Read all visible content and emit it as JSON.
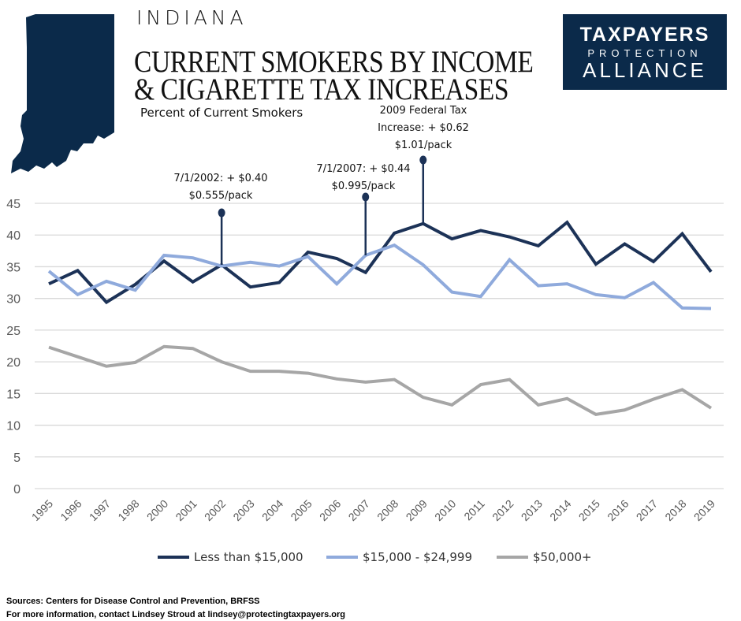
{
  "header": {
    "kicker": "INDIANA",
    "title_line1": "CURRENT SMOKERS BY INCOME",
    "title_line2": "& CIGARETTE TAX INCREASES",
    "subtitle": "Percent of Current Smokers"
  },
  "logo": {
    "line1": "TAXPAYERS",
    "line2": "PROTECTION",
    "line3": "ALLIANCE",
    "color": "#0b2a4a"
  },
  "annotations": [
    {
      "year": "2002",
      "lines": [
        "7/1/2002: + $0.40",
        "$0.555/pack"
      ]
    },
    {
      "year": "2007",
      "lines": [
        "7/1/2007: + $0.44",
        "$0.995/pack"
      ]
    },
    {
      "year": "2009",
      "lines": [
        "2009 Federal Tax",
        "Increase: + $0.62",
        "$1.01/pack"
      ]
    }
  ],
  "chart_data": {
    "type": "line",
    "title": "",
    "xlabel": "",
    "ylabel": "",
    "ylim": [
      0,
      45
    ],
    "yticks": [
      0,
      5,
      10,
      15,
      20,
      25,
      30,
      35,
      40,
      45
    ],
    "grid": true,
    "legend_placement": "bottom",
    "categories": [
      "1995",
      "1996",
      "1997",
      "1998",
      "2000",
      "2001",
      "2002",
      "2003",
      "2004",
      "2005",
      "2006",
      "2007",
      "2008",
      "2009",
      "2010",
      "2011",
      "2012",
      "2013",
      "2014",
      "2015",
      "2016",
      "2017",
      "2018",
      "2019"
    ],
    "series": [
      {
        "name": "Less than $15,000",
        "color": "#1c3257",
        "values": [
          32.3,
          34.4,
          29.4,
          32.2,
          35.9,
          32.6,
          35.3,
          31.8,
          32.5,
          37.3,
          36.3,
          34.1,
          40.3,
          41.8,
          39.4,
          40.7,
          39.7,
          38.3,
          42.0,
          35.4,
          38.6,
          35.8,
          40.2,
          34.2
        ]
      },
      {
        "name": "$15,000 - $24,999",
        "color": "#8faadc",
        "values": [
          34.3,
          30.6,
          32.7,
          31.3,
          36.8,
          36.4,
          35.1,
          35.7,
          35.1,
          36.6,
          32.3,
          36.8,
          38.4,
          35.3,
          31.0,
          30.3,
          36.1,
          32.0,
          32.3,
          30.6,
          30.1,
          32.5,
          28.5,
          28.4
        ]
      },
      {
        "name": "$50,000+",
        "color": "#a6a6a6",
        "values": [
          22.3,
          20.8,
          19.3,
          19.9,
          22.4,
          22.1,
          20.0,
          18.5,
          18.5,
          18.2,
          17.3,
          16.8,
          17.2,
          14.4,
          13.2,
          16.4,
          17.2,
          13.2,
          14.2,
          11.7,
          12.4,
          14.1,
          15.6,
          12.7
        ]
      }
    ]
  },
  "footer": {
    "sources": "Sources:  Centers for Disease Control and Prevention, BRFSS",
    "contact": "For more information, contact Lindsey Stroud at lindsey@protectingtaxpayers.org"
  }
}
